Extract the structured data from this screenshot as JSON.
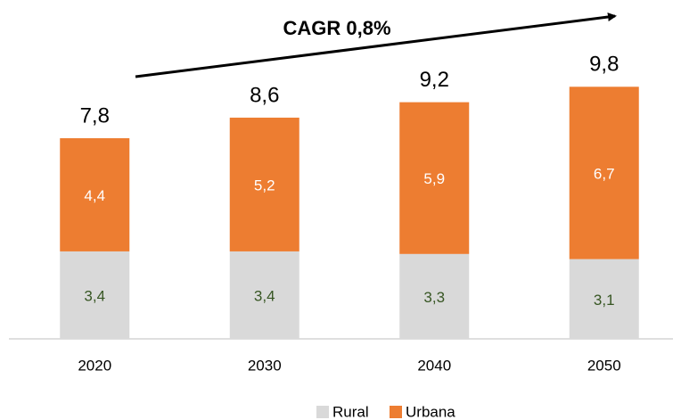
{
  "chart_data": {
    "type": "stacked_bar",
    "annotation": "CAGR 0,8%",
    "categories": [
      "2020",
      "2030",
      "2040",
      "2050"
    ],
    "series": [
      {
        "name": "Rural",
        "color": "#d9d9d9",
        "label_color": "#375623",
        "values": [
          3.4,
          3.4,
          3.3,
          3.1
        ],
        "value_labels": [
          "3,4",
          "3,4",
          "3,3",
          "3,1"
        ]
      },
      {
        "name": "Urbana",
        "color": "#ed7d31",
        "label_color": "#ffffff",
        "values": [
          4.4,
          5.2,
          5.9,
          6.7
        ],
        "value_labels": [
          "4,4",
          "5,2",
          "5,9",
          "6,7"
        ]
      }
    ],
    "totals": [
      7.8,
      8.6,
      9.2,
      9.8
    ],
    "total_labels": [
      "7,8",
      "8,6",
      "9,2",
      "9,8"
    ],
    "ylim": [
      0,
      13
    ],
    "legend": "bottom"
  }
}
